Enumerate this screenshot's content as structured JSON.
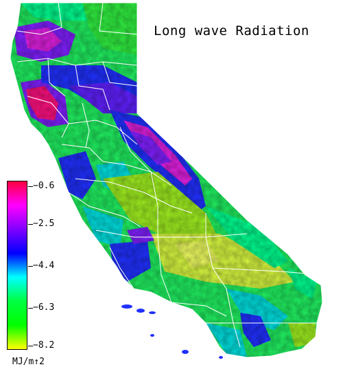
{
  "title": "Long wave Radiation",
  "legend": {
    "unit": "MJ/m↑2",
    "ticks": [
      "−0.6",
      "−2.5",
      "−4.4",
      "−6.3",
      "−8.2"
    ],
    "colors": [
      "#ff0040",
      "#ff00ff",
      "#8000ff",
      "#0000ff",
      "#00ffff",
      "#00ff40",
      "#00ff00",
      "#ffff00"
    ]
  },
  "palette": {
    "magenta": "#e020e0",
    "violet": "#8020ff",
    "blue": "#2030ff",
    "cyan": "#00e0e0",
    "aqua_green": "#00ff90",
    "green": "#20f030",
    "lime": "#a0f020",
    "yellow_green": "#d8f840",
    "pink": "#ff1080",
    "border": "#ffffff"
  }
}
